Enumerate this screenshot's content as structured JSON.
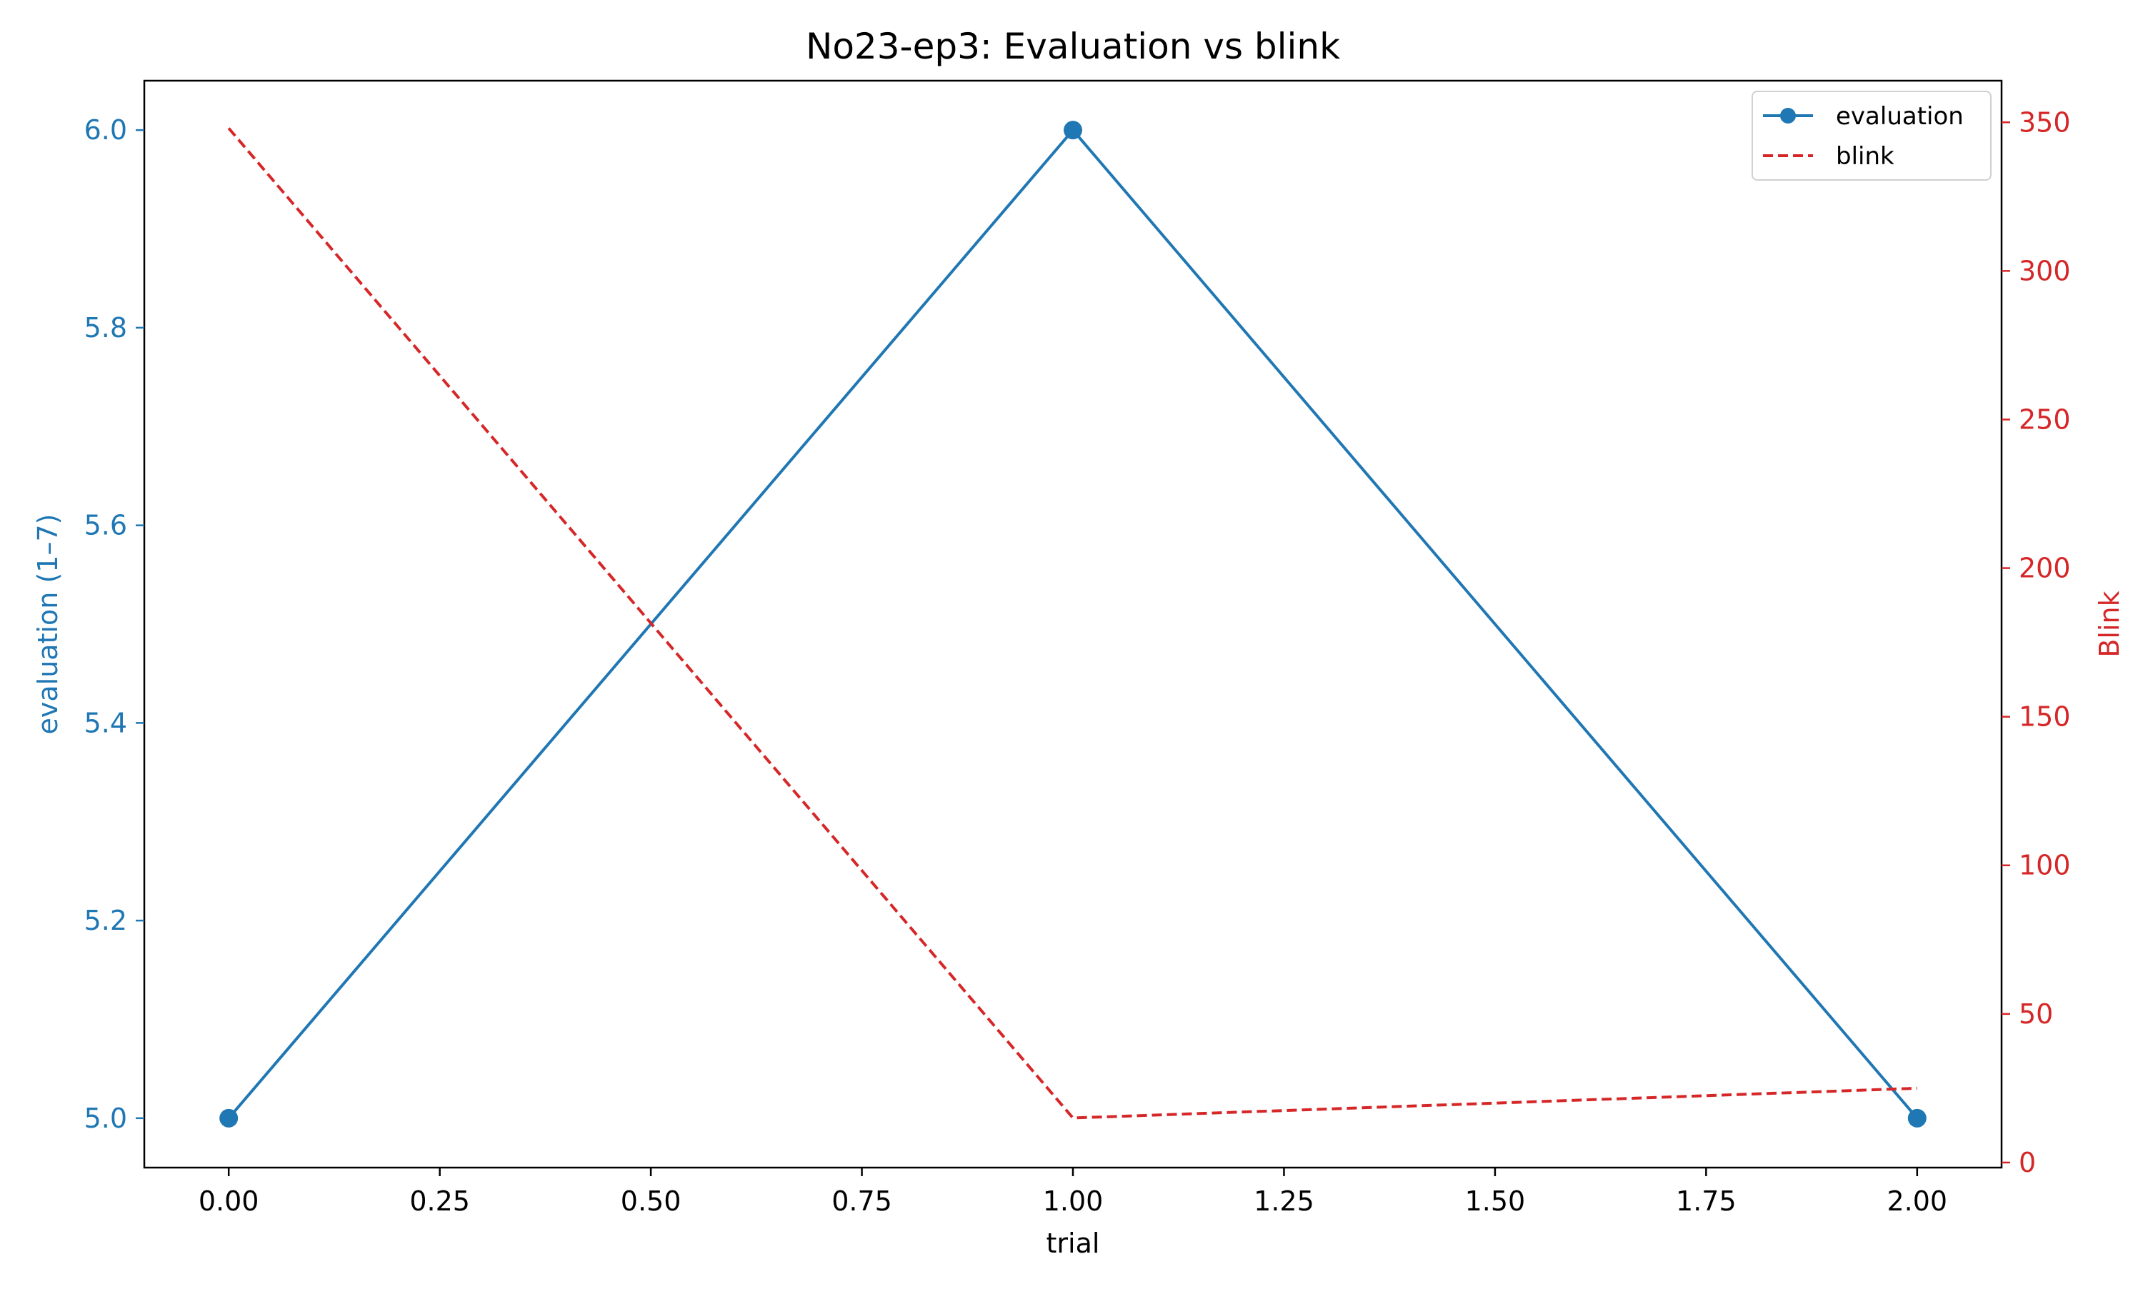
{
  "chart_data": {
    "type": "line",
    "title": "No23-ep3: Evaluation vs blink",
    "xlabel": "trial",
    "ylabel_left": "evaluation (1–7)",
    "ylabel_right": "Blink",
    "x": [
      0,
      1,
      2
    ],
    "xlim": [
      -0.1,
      2.1
    ],
    "xticks": [
      "0.00",
      "0.25",
      "0.50",
      "0.75",
      "1.00",
      "1.25",
      "1.50",
      "1.75",
      "2.00"
    ],
    "ylim_left": [
      4.95,
      6.05
    ],
    "yticks_left": [
      "5.0",
      "5.2",
      "5.4",
      "5.6",
      "5.8",
      "6.0"
    ],
    "ylim_right": [
      -1.7,
      364
    ],
    "yticks_right": [
      "0",
      "50",
      "100",
      "150",
      "200",
      "250",
      "300",
      "350"
    ],
    "grid": false,
    "legend_position": "top-right",
    "series": [
      {
        "name": "evaluation",
        "axis": "left",
        "values": [
          5,
          6,
          5
        ],
        "color": "#1f77b4",
        "style": "solid",
        "marker": "circle"
      },
      {
        "name": "blink",
        "axis": "right",
        "values": [
          348,
          15,
          25
        ],
        "color": "#d62728",
        "style": "dashed",
        "marker": "none"
      }
    ]
  }
}
